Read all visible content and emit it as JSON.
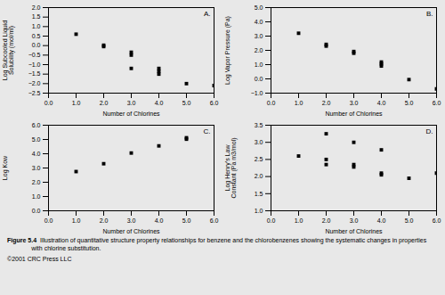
{
  "chart_data": [
    {
      "type": "scatter",
      "title": "A.",
      "xlabel": "Number of Chlorines",
      "ylabel": "Log Subcooled Liquid\nSolubility (mol/ml)",
      "x": [
        1,
        2,
        2,
        3,
        3,
        3,
        4,
        4,
        4,
        5,
        6
      ],
      "values": [
        0.6,
        -0.05,
        0.02,
        -0.35,
        -0.5,
        -1.2,
        -1.2,
        -1.35,
        -1.5,
        -2.0,
        -2.1
      ],
      "color": "black",
      "marker": "square",
      "grid": false,
      "xlim": [
        0,
        6
      ],
      "xticks": [
        0,
        1,
        2,
        3,
        4,
        5,
        6
      ],
      "ylim": [
        -2.5,
        2
      ],
      "yticks": [
        {
          "value": -2.5,
          "label": "−2.5"
        },
        {
          "value": -2,
          "label": "−2.0"
        },
        {
          "value": -1.5,
          "label": "−1.5"
        },
        {
          "value": -1,
          "label": "−1.0"
        },
        {
          "value": -0.5,
          "label": "−0.5"
        },
        {
          "value": 0,
          "label": "0.0"
        },
        {
          "value": 0.5,
          "label": "0.5"
        },
        {
          "value": 1,
          "label": "1.0"
        },
        {
          "value": 1.5,
          "label": "1.5"
        },
        {
          "value": 2,
          "label": "2.0"
        }
      ]
    },
    {
      "type": "scatter",
      "title": "B.",
      "xlabel": "Number of Chlorines",
      "ylabel": "Log Vapor Pressure (Pa)",
      "x": [
        1,
        2,
        2,
        3,
        3,
        4,
        4,
        4,
        5,
        6
      ],
      "values": [
        3.2,
        2.3,
        2.42,
        1.8,
        1.92,
        0.9,
        1.05,
        1.18,
        -0.05,
        -0.7
      ],
      "color": "black",
      "marker": "square",
      "grid": false,
      "xlim": [
        0,
        6
      ],
      "xticks": [
        0,
        1,
        2,
        3,
        4,
        5,
        6
      ],
      "ylim": [
        -1,
        5
      ],
      "yticks": [
        -1,
        0,
        1,
        2,
        3,
        4,
        5
      ]
    },
    {
      "type": "scatter",
      "title": "C.",
      "xlabel": "Number of Chlorines",
      "ylabel": "Log Kow",
      "x": [
        1,
        2,
        3,
        4,
        5,
        5
      ],
      "values": [
        2.75,
        3.3,
        4.05,
        4.55,
        5.02,
        5.12
      ],
      "color": "black",
      "marker": "square",
      "grid": false,
      "xlim": [
        0,
        6
      ],
      "xticks": [
        0,
        1,
        2,
        3,
        4,
        5,
        6
      ],
      "ylim": [
        0,
        6
      ],
      "yticks": [
        0,
        1,
        2,
        3,
        4,
        5,
        6
      ]
    },
    {
      "type": "scatter",
      "title": "D.",
      "xlabel": "Number of Chlorines",
      "ylabel": "Log Henry's Law\nConstant (Pa m3/mol)",
      "x": [
        1,
        2,
        2,
        2,
        3,
        3,
        3,
        4,
        4,
        4,
        5,
        6
      ],
      "values": [
        2.6,
        3.25,
        2.5,
        2.35,
        3.0,
        2.35,
        2.28,
        2.78,
        2.1,
        2.05,
        1.95,
        2.1
      ],
      "color": "black",
      "marker": "square",
      "grid": false,
      "xlim": [
        0,
        6
      ],
      "xticks": [
        0,
        1,
        2,
        3,
        4,
        5,
        6
      ],
      "ylim": [
        1,
        3.5
      ],
      "yticks": [
        {
          "value": 1,
          "label": "1.0"
        },
        {
          "value": 1.5,
          "label": "1.5"
        },
        {
          "value": 2,
          "label": "2.0"
        },
        {
          "value": 2.5,
          "label": "2.5"
        },
        {
          "value": 3,
          "label": "3.0"
        },
        {
          "value": 3.5,
          "label": "3.5"
        }
      ]
    }
  ],
  "annotations": [
    "Figure 5.4",
    "  Illustration of quantitative structure property relationships for benzene and the chlorobenzenes showing the systematic changes in properties\n              with chlorine substitution.",
    "©2001 CRC Press LLC"
  ]
}
